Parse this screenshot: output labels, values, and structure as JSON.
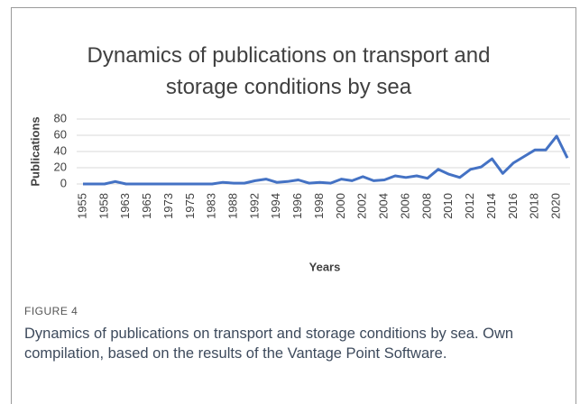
{
  "chart_data": {
    "type": "line",
    "title": "Dynamics of publications on transport and storage conditions by sea",
    "x_label": "Years",
    "y_label": "Publications",
    "categories": [
      "1955",
      null,
      "1958",
      null,
      "1963",
      null,
      "1965",
      null,
      "1973",
      null,
      "1975",
      null,
      "1983",
      null,
      "1988",
      null,
      "1992",
      null,
      "1994",
      null,
      "1996",
      null,
      "1998",
      null,
      "2000",
      null,
      "2002",
      null,
      "2004",
      null,
      "2006",
      null,
      "2008",
      null,
      "2010",
      null,
      "2012",
      null,
      "2014",
      null,
      "2016",
      null,
      "2018",
      null,
      "2020",
      null
    ],
    "series": [
      {
        "name": "Publications",
        "color": "#4472c4",
        "values": [
          0,
          0,
          0,
          3,
          0,
          0,
          0,
          0,
          0,
          0,
          0,
          0,
          0,
          2,
          1,
          1,
          4,
          6,
          2,
          3,
          5,
          1,
          2,
          1,
          6,
          4,
          9,
          4,
          5,
          10,
          8,
          10,
          7,
          18,
          12,
          8,
          18,
          21,
          31,
          13,
          26,
          34,
          42,
          42,
          59,
          32
        ]
      }
    ],
    "ylim": [
      0,
      80
    ],
    "yticks": [
      0,
      20,
      40,
      60,
      80
    ],
    "grid": true
  },
  "figure": {
    "label": "FIGURE 4",
    "caption": "Dynamics of publications on transport and storage conditions by sea. Own compilation, based on the results of the Vantage Point Software."
  }
}
